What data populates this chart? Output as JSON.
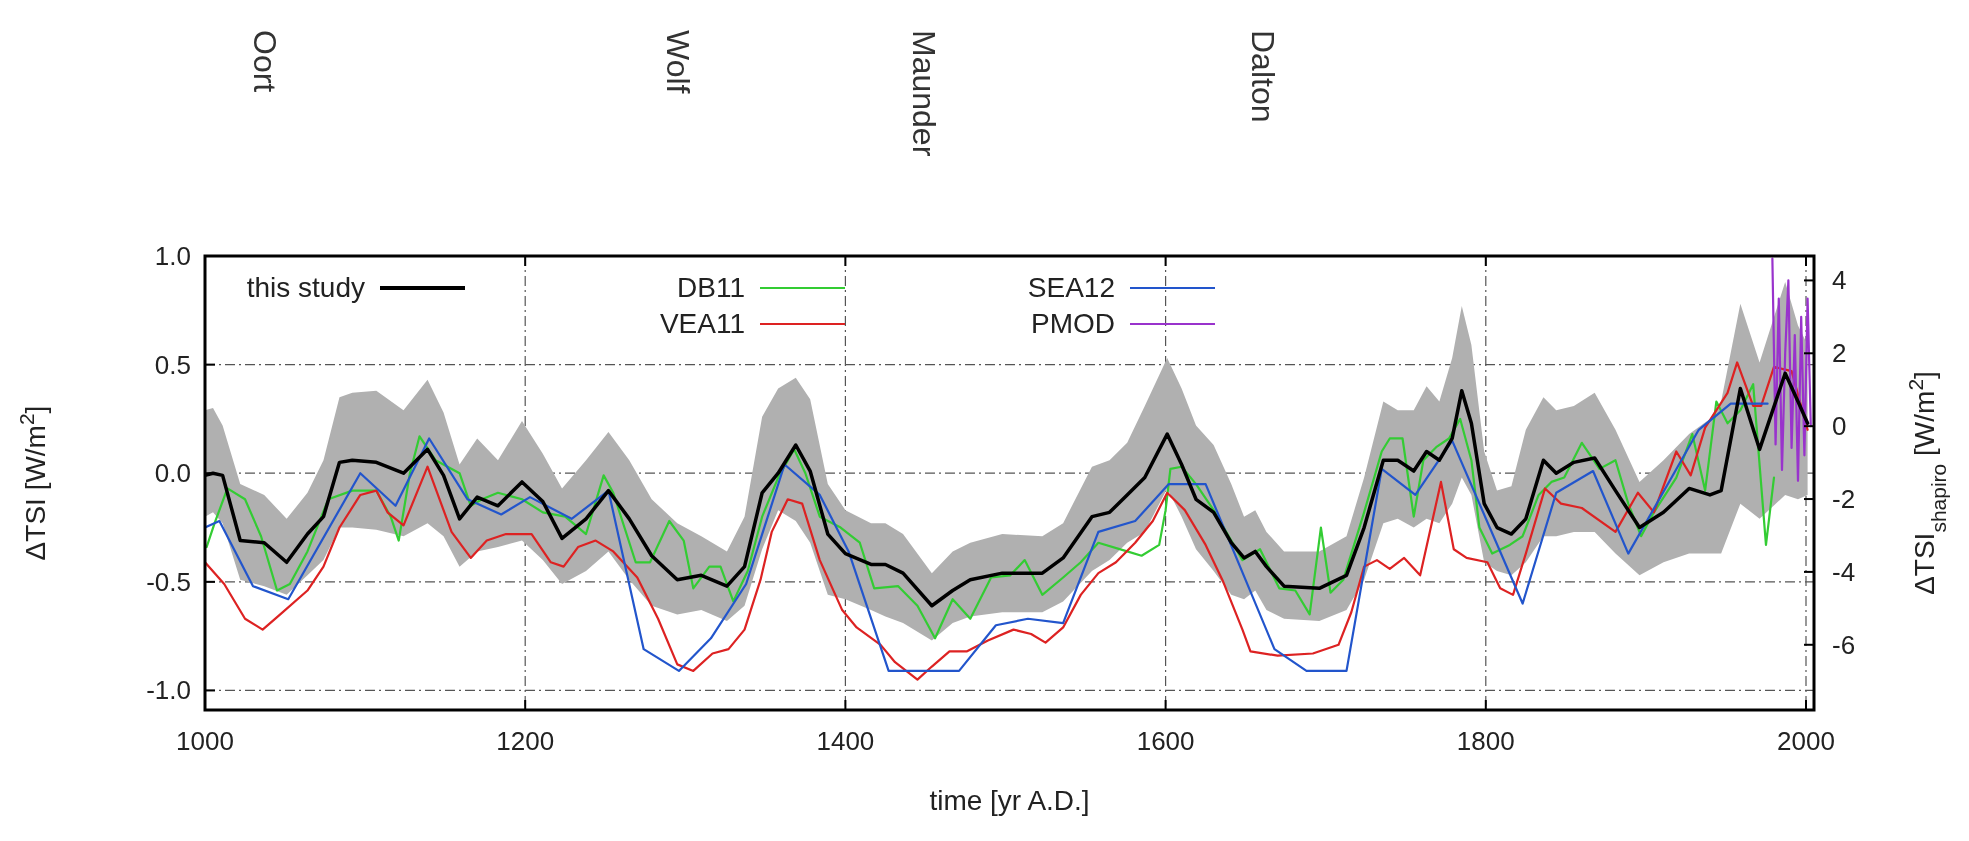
{
  "chart_data": {
    "type": "line",
    "xlabel": "time [yr A.D.]",
    "ylabel": "ΔTSI [W/m$^{2}$]",
    "y2label": "ΔTSI$_{shapiro}$ [W/m$^{2}$]",
    "xlim": [
      1000,
      2005
    ],
    "xticks": [
      1000,
      1200,
      1400,
      1600,
      1800,
      2000
    ],
    "ylim": [
      -1.09,
      1.0
    ],
    "yticks": [
      {
        "value": -1,
        "label": "-1.0"
      },
      -0.5,
      {
        "value": 0,
        "label": "0.0"
      },
      0.5,
      {
        "value": 1,
        "label": "1.0"
      }
    ],
    "y2lim": [
      -7.79,
      4.67
    ],
    "y2ticks": [
      -6,
      -4,
      -2,
      0,
      2,
      4
    ],
    "grid": true,
    "legend": "top",
    "line_style": "solid",
    "marker": "none",
    "annotations": [
      "Oort",
      "Wolf",
      "Maunder",
      "Dalton"
    ],
    "series": [
      {
        "name": "this study",
        "color": "#000000",
        "x": [
          1000,
          1005,
          1011,
          1022,
          1037,
          1051,
          1064,
          1074,
          1084,
          1092,
          1107,
          1124,
          1139,
          1149,
          1159,
          1170,
          1183,
          1198,
          1211,
          1223,
          1238,
          1252,
          1265,
          1279,
          1295,
          1310,
          1326,
          1337,
          1348,
          1358,
          1369,
          1378,
          1389,
          1400,
          1416,
          1425,
          1436,
          1454,
          1467,
          1478,
          1498,
          1523,
          1536,
          1554,
          1565,
          1576,
          1587,
          1601,
          1610,
          1619,
          1630,
          1641,
          1649,
          1656,
          1663,
          1674,
          1696,
          1713,
          1724,
          1736,
          1745,
          1755,
          1763,
          1771,
          1779,
          1785,
          1791,
          1799,
          1807,
          1816,
          1825,
          1836,
          1844,
          1855,
          1868,
          1881,
          1896,
          1911,
          1927,
          1940,
          1947,
          1959,
          1971,
          1987,
          1995,
          2001
        ],
        "values": [
          -0.01,
          0.0,
          -0.01,
          -0.31,
          -0.32,
          -0.41,
          -0.28,
          -0.2,
          0.05,
          0.06,
          0.05,
          0.0,
          0.11,
          -0.01,
          -0.21,
          -0.11,
          -0.15,
          -0.04,
          -0.13,
          -0.3,
          -0.21,
          -0.08,
          -0.21,
          -0.38,
          -0.49,
          -0.47,
          -0.52,
          -0.43,
          -0.09,
          0.0,
          0.13,
          0.01,
          -0.28,
          -0.37,
          -0.42,
          -0.42,
          -0.46,
          -0.61,
          -0.54,
          -0.49,
          -0.46,
          -0.46,
          -0.39,
          -0.2,
          -0.18,
          -0.1,
          -0.02,
          0.18,
          0.04,
          -0.12,
          -0.18,
          -0.32,
          -0.39,
          -0.36,
          -0.43,
          -0.52,
          -0.53,
          -0.47,
          -0.25,
          0.06,
          0.06,
          0.01,
          0.1,
          0.06,
          0.16,
          0.38,
          0.23,
          -0.14,
          -0.25,
          -0.28,
          -0.21,
          0.06,
          0.0,
          0.05,
          0.07,
          -0.08,
          -0.25,
          -0.18,
          -0.07,
          -0.1,
          -0.08,
          0.39,
          0.11,
          0.46,
          0.33,
          0.23
        ],
        "upper": [
          0.29,
          0.3,
          0.22,
          -0.05,
          -0.1,
          -0.21,
          -0.09,
          0.06,
          0.35,
          0.37,
          0.38,
          0.29,
          0.43,
          0.28,
          0.04,
          0.16,
          0.06,
          0.24,
          0.09,
          -0.07,
          0.06,
          0.19,
          0.06,
          -0.12,
          -0.23,
          -0.29,
          -0.36,
          -0.2,
          0.26,
          0.39,
          0.44,
          0.34,
          -0.05,
          -0.17,
          -0.23,
          -0.23,
          -0.28,
          -0.46,
          -0.36,
          -0.32,
          -0.28,
          -0.29,
          -0.23,
          0.03,
          0.06,
          0.14,
          0.31,
          0.53,
          0.39,
          0.22,
          0.13,
          -0.05,
          -0.2,
          -0.17,
          -0.27,
          -0.36,
          -0.36,
          -0.29,
          -0.02,
          0.33,
          0.29,
          0.29,
          0.4,
          0.33,
          0.53,
          0.77,
          0.59,
          0.1,
          -0.08,
          -0.06,
          0.2,
          0.35,
          0.29,
          0.31,
          0.37,
          0.2,
          -0.04,
          0.06,
          0.18,
          0.25,
          0.33,
          0.78,
          0.51,
          0.88,
          0.68,
          0.59
        ],
        "lower": [
          -0.2,
          -0.18,
          -0.23,
          -0.49,
          -0.52,
          -0.56,
          -0.47,
          -0.4,
          -0.25,
          -0.25,
          -0.26,
          -0.29,
          -0.23,
          -0.29,
          -0.43,
          -0.36,
          -0.34,
          -0.31,
          -0.4,
          -0.51,
          -0.45,
          -0.36,
          -0.49,
          -0.61,
          -0.65,
          -0.63,
          -0.68,
          -0.61,
          -0.35,
          -0.17,
          -0.22,
          -0.32,
          -0.56,
          -0.58,
          -0.63,
          -0.66,
          -0.69,
          -0.77,
          -0.69,
          -0.66,
          -0.64,
          -0.64,
          -0.59,
          -0.45,
          -0.4,
          -0.32,
          -0.27,
          -0.07,
          -0.2,
          -0.35,
          -0.45,
          -0.56,
          -0.58,
          -0.54,
          -0.63,
          -0.67,
          -0.68,
          -0.63,
          -0.49,
          -0.23,
          -0.21,
          -0.25,
          -0.21,
          -0.23,
          -0.14,
          -0.02,
          -0.1,
          -0.41,
          -0.45,
          -0.47,
          -0.41,
          -0.29,
          -0.29,
          -0.27,
          -0.27,
          -0.37,
          -0.47,
          -0.41,
          -0.37,
          -0.37,
          -0.37,
          -0.14,
          -0.21,
          -0.1,
          -0.12,
          -0.1
        ]
      },
      {
        "name": "DB11",
        "color": "#33cc33",
        "x": [
          1001,
          1006,
          1014,
          1025,
          1035,
          1045,
          1053,
          1064,
          1077,
          1092,
          1107,
          1116,
          1121,
          1128,
          1134,
          1144,
          1159,
          1166,
          1173,
          1183,
          1198,
          1211,
          1225,
          1238,
          1249,
          1255,
          1269,
          1278,
          1290,
          1299,
          1305,
          1315,
          1322,
          1330,
          1339,
          1348,
          1358,
          1368,
          1375,
          1384,
          1397,
          1409,
          1418,
          1433,
          1445,
          1456,
          1467,
          1478,
          1491,
          1503,
          1512,
          1523,
          1536,
          1547,
          1558,
          1576,
          1585,
          1596,
          1600,
          1603,
          1610,
          1619,
          1630,
          1648,
          1659,
          1671,
          1681,
          1690,
          1697,
          1703,
          1711,
          1724,
          1735,
          1740,
          1748,
          1755,
          1761,
          1769,
          1777,
          1784,
          1791,
          1796,
          1804,
          1815,
          1823,
          1833,
          1841,
          1849,
          1860,
          1871,
          1881,
          1889,
          1897,
          1905,
          1919,
          1929,
          1937,
          1944,
          1951,
          1959,
          1967,
          1975,
          1980
        ],
        "values": [
          -0.34,
          -0.23,
          -0.07,
          -0.12,
          -0.29,
          -0.54,
          -0.51,
          -0.36,
          -0.12,
          -0.08,
          -0.08,
          -0.2,
          -0.31,
          0.0,
          0.17,
          0.06,
          0.0,
          -0.15,
          -0.12,
          -0.09,
          -0.12,
          -0.18,
          -0.2,
          -0.28,
          -0.01,
          -0.09,
          -0.41,
          -0.41,
          -0.22,
          -0.31,
          -0.53,
          -0.43,
          -0.43,
          -0.59,
          -0.45,
          -0.2,
          -0.02,
          0.11,
          0.0,
          -0.2,
          -0.25,
          -0.32,
          -0.53,
          -0.52,
          -0.61,
          -0.76,
          -0.58,
          -0.67,
          -0.48,
          -0.47,
          -0.4,
          -0.56,
          -0.48,
          -0.41,
          -0.32,
          -0.36,
          -0.38,
          -0.33,
          -0.17,
          0.02,
          0.03,
          -0.05,
          -0.17,
          -0.4,
          -0.35,
          -0.53,
          -0.54,
          -0.65,
          -0.25,
          -0.55,
          -0.49,
          -0.18,
          0.1,
          0.16,
          0.16,
          -0.2,
          0.06,
          0.12,
          0.16,
          0.25,
          0.06,
          -0.25,
          -0.37,
          -0.33,
          -0.29,
          -0.1,
          -0.04,
          -0.02,
          0.14,
          0.02,
          0.06,
          -0.14,
          -0.29,
          -0.18,
          -0.02,
          0.18,
          -0.08,
          0.33,
          0.23,
          0.29,
          0.41,
          -0.33,
          -0.02
        ]
      },
      {
        "name": "VEA11",
        "color": "#dd2222",
        "x": [
          1000,
          1012,
          1025,
          1036,
          1047,
          1064,
          1074,
          1084,
          1097,
          1107,
          1114,
          1124,
          1139,
          1154,
          1166,
          1176,
          1188,
          1204,
          1216,
          1224,
          1233,
          1244,
          1255,
          1270,
          1283,
          1295,
          1305,
          1317,
          1327,
          1337,
          1347,
          1354,
          1364,
          1373,
          1384,
          1398,
          1407,
          1422,
          1431,
          1445,
          1454,
          1465,
          1476,
          1489,
          1505,
          1516,
          1525,
          1536,
          1547,
          1558,
          1569,
          1581,
          1592,
          1601,
          1612,
          1625,
          1636,
          1648,
          1653,
          1670,
          1692,
          1708,
          1716,
          1724,
          1732,
          1740,
          1749,
          1759,
          1772,
          1780,
          1788,
          1801,
          1809,
          1817,
          1825,
          1837,
          1847,
          1860,
          1881,
          1895,
          1905,
          1919,
          1928,
          1937,
          1951,
          1957,
          1967,
          1972,
          1980,
          1991,
          2001
        ],
        "values": [
          -0.41,
          -0.51,
          -0.67,
          -0.72,
          -0.65,
          -0.54,
          -0.43,
          -0.25,
          -0.1,
          -0.08,
          -0.18,
          -0.24,
          0.03,
          -0.27,
          -0.39,
          -0.31,
          -0.28,
          -0.28,
          -0.41,
          -0.43,
          -0.34,
          -0.31,
          -0.36,
          -0.48,
          -0.67,
          -0.88,
          -0.91,
          -0.83,
          -0.81,
          -0.72,
          -0.49,
          -0.27,
          -0.12,
          -0.14,
          -0.4,
          -0.63,
          -0.71,
          -0.79,
          -0.87,
          -0.95,
          -0.89,
          -0.82,
          -0.82,
          -0.77,
          -0.72,
          -0.74,
          -0.78,
          -0.71,
          -0.56,
          -0.46,
          -0.41,
          -0.32,
          -0.22,
          -0.09,
          -0.17,
          -0.33,
          -0.5,
          -0.72,
          -0.82,
          -0.84,
          -0.83,
          -0.79,
          -0.64,
          -0.43,
          -0.4,
          -0.44,
          -0.39,
          -0.47,
          -0.04,
          -0.35,
          -0.39,
          -0.41,
          -0.53,
          -0.56,
          -0.37,
          -0.07,
          -0.14,
          -0.16,
          -0.27,
          -0.09,
          -0.18,
          0.1,
          -0.01,
          0.21,
          0.37,
          0.51,
          0.31,
          0.31,
          0.49,
          0.47,
          0.2
        ]
      },
      {
        "name": "SEA12",
        "color": "#2255cc",
        "x": [
          1000,
          1009,
          1030,
          1052,
          1097,
          1119,
          1140,
          1164,
          1185,
          1203,
          1229,
          1252,
          1274,
          1296,
          1316,
          1338,
          1362,
          1384,
          1402,
          1427,
          1471,
          1494,
          1514,
          1536,
          1558,
          1581,
          1602,
          1625,
          1668,
          1688,
          1713,
          1735,
          1756,
          1779,
          1823,
          1844,
          1867,
          1889,
          1933,
          1953,
          1976
        ],
        "values": [
          -0.25,
          -0.22,
          -0.52,
          -0.58,
          0.0,
          -0.15,
          0.16,
          -0.12,
          -0.19,
          -0.11,
          -0.21,
          -0.08,
          -0.81,
          -0.91,
          -0.76,
          -0.51,
          0.04,
          -0.1,
          -0.36,
          -0.91,
          -0.91,
          -0.7,
          -0.67,
          -0.69,
          -0.27,
          -0.22,
          -0.05,
          -0.05,
          -0.81,
          -0.91,
          -0.91,
          0.02,
          -0.1,
          0.15,
          -0.6,
          -0.09,
          0.01,
          -0.37,
          0.2,
          0.32,
          0.32
        ]
      },
      {
        "name": "PMOD",
        "color": "#9933cc",
        "axis": "y2",
        "x": [
          1979,
          1981,
          1983,
          1985,
          1987,
          1989,
          1991,
          1993,
          1995,
          1997,
          1999,
          2001,
          2003
        ],
        "values": [
          4.6,
          -0.5,
          3.5,
          -1.2,
          2.0,
          4.0,
          -0.6,
          2.5,
          -1.5,
          3.0,
          -0.8,
          3.5,
          0.0
        ]
      }
    ]
  }
}
